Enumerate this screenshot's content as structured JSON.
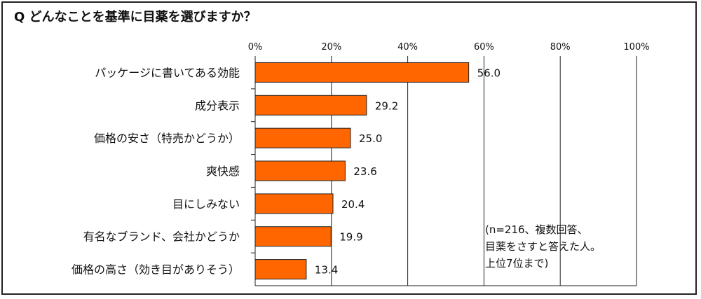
{
  "title": "Q どんなことを基準に目薬を選びますか？",
  "note": [
    "(n=216、複数回答、",
    "目薬をさすと答えた人。",
    "上位7位まで)"
  ],
  "colors": {
    "bar": "#ff6600",
    "bar_stroke": "#222222",
    "grid": "#222222"
  },
  "chart_data": {
    "type": "bar",
    "orientation": "horizontal",
    "title": "Q どんなことを基準に目薬を選びますか？",
    "categories": [
      "パッケージに書いてある効能",
      "成分表示",
      "価格の安さ（特売かどうか）",
      "爽快感",
      "目にしみない",
      "有名なブランド、会社かどうか",
      "価格の高さ（効き目がありそう）"
    ],
    "values": [
      56.0,
      29.2,
      25.0,
      23.6,
      20.4,
      19.9,
      13.4
    ],
    "value_labels": [
      "56.0",
      "29.2",
      "25.0",
      "23.6",
      "20.4",
      "19.9",
      "13.4"
    ],
    "xlim": [
      0,
      100
    ],
    "ticks": [
      0,
      20,
      40,
      60,
      80,
      100
    ],
    "tick_labels": [
      "0%",
      "20%",
      "40%",
      "60%",
      "80%",
      "100%"
    ],
    "grid": true,
    "legend": "none"
  }
}
